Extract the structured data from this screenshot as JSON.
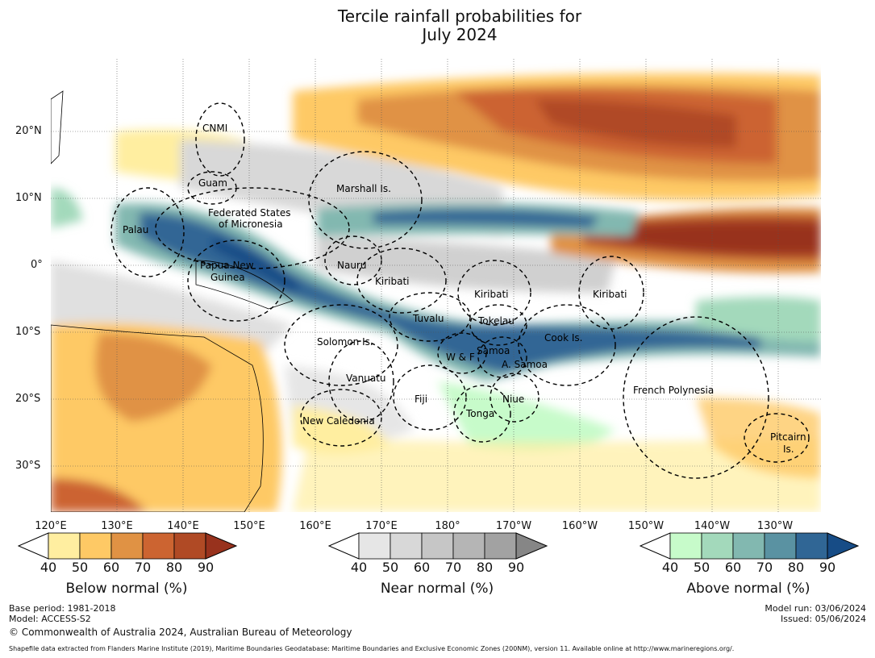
{
  "title_line1": "Tercile rainfall probabilities for",
  "title_line2": "July 2024",
  "lat_labels": [
    "20°N",
    "10°N",
    "0°",
    "10°S",
    "20°S",
    "30°S"
  ],
  "lon_labels": [
    "120°E",
    "130°E",
    "140°E",
    "150°E",
    "160°E",
    "170°E",
    "180°",
    "170°W",
    "160°W",
    "150°W",
    "140°W",
    "130°W"
  ],
  "regions": [
    "CNMI",
    "Guam",
    "Marshall Is.",
    "Federated States",
    "of Micronesia",
    "Palau",
    "Papua New",
    "Guinea",
    "Nauru",
    "Kiribati",
    "Kiribati",
    "Kiribati",
    "Tuvalu",
    "Tokelau",
    "Solomon Is.",
    "W & F",
    "Samoa",
    "A. Samoa",
    "Cook Is.",
    "Vanuatu",
    "Fiji",
    "Niue",
    "Tonga",
    "New Caledonia",
    "French Polynesia",
    "Pitcairn",
    "Is."
  ],
  "colorbars": [
    {
      "label": "Below normal (%)",
      "ticks": [
        "40",
        "50",
        "60",
        "70",
        "80",
        "90"
      ],
      "colors": [
        "#ffeea0",
        "#fec965",
        "#e09244",
        "#cc6431",
        "#b04a25",
        "#98321d"
      ]
    },
    {
      "label": "Near normal (%)",
      "ticks": [
        "40",
        "50",
        "60",
        "70",
        "80",
        "90"
      ],
      "colors": [
        "#e6e6e6",
        "#d8d8d8",
        "#c6c6c6",
        "#b5b5b5",
        "#a2a2a2",
        "#868686"
      ]
    },
    {
      "label": "Above normal (%)",
      "ticks": [
        "40",
        "50",
        "60",
        "70",
        "80",
        "90"
      ],
      "colors": [
        "#c7fbca",
        "#a3d9bb",
        "#82b8b0",
        "#5a92a2",
        "#306695",
        "#174c86"
      ]
    }
  ],
  "footer": {
    "base_period": "Base period: 1981-2018",
    "model": "Model: ACCESS-S2",
    "copyright": "© Commonwealth of Australia 2024, Australian Bureau of Meteorology",
    "model_run": "Model run: 03/06/2024",
    "issued": "Issued: 05/06/2024",
    "shapefile": "Shapefile data extracted from Flanders Marine Institute (2019), Maritime Boundaries Geodatabase: Maritime Boundaries and Exclusive Economic Zones (200NM), version 11. Available online at http://www.marineregions.org/."
  }
}
